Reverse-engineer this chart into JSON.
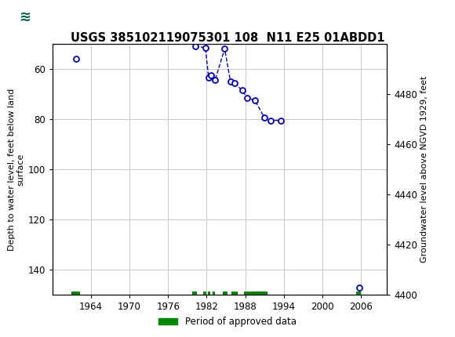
{
  "title": "USGS 385102119075301 108  N11 E25 01ABDD1",
  "ylabel_left": "Depth to water level, feet below land\nsurface",
  "ylabel_right": "Groundwater level above NGVD 1929, feet",
  "ylim_left": [
    50,
    150
  ],
  "ylim_right_bottom": 4400,
  "ylim_right_top": 4500,
  "xlim": [
    1958,
    2010
  ],
  "yticks_left": [
    60,
    80,
    100,
    120,
    140
  ],
  "yticks_right": [
    4400,
    4420,
    4440,
    4460,
    4480
  ],
  "xticks": [
    1964,
    1970,
    1976,
    1982,
    1988,
    1994,
    2000,
    2006
  ],
  "data_points": [
    [
      1961.7,
      56.0
    ],
    [
      1980.2,
      51.0
    ],
    [
      1981.8,
      51.5
    ],
    [
      1982.3,
      63.5
    ],
    [
      1982.7,
      62.5
    ],
    [
      1983.3,
      64.5
    ],
    [
      1984.8,
      52.0
    ],
    [
      1985.7,
      65.0
    ],
    [
      1986.3,
      65.5
    ],
    [
      1987.5,
      68.5
    ],
    [
      1988.3,
      71.5
    ],
    [
      1989.5,
      72.5
    ],
    [
      1991.0,
      79.5
    ],
    [
      1992.0,
      80.5
    ],
    [
      1993.5,
      80.5
    ],
    [
      2005.7,
      147.0
    ]
  ],
  "connected_indices": [
    1,
    2,
    3,
    4,
    5,
    6,
    7,
    8,
    9,
    10,
    11,
    12,
    13,
    14
  ],
  "approved_periods": [
    [
      1961.0,
      1962.3
    ],
    [
      1979.8,
      1980.5
    ],
    [
      1981.5,
      1982.0
    ],
    [
      1982.2,
      1982.6
    ],
    [
      1982.9,
      1983.3
    ],
    [
      1984.5,
      1985.2
    ],
    [
      1985.8,
      1986.8
    ],
    [
      1987.8,
      1991.5
    ],
    [
      2005.2,
      2006.0
    ]
  ],
  "header_bg_color": "#006644",
  "plot_bg_color": "#ffffff",
  "grid_color": "#c8c8c8",
  "data_color": "#0000cc",
  "approved_color": "#008800",
  "line_style": "--",
  "marker_size": 5,
  "marker_facecolor": "white",
  "marker_edgewidth": 1.3
}
